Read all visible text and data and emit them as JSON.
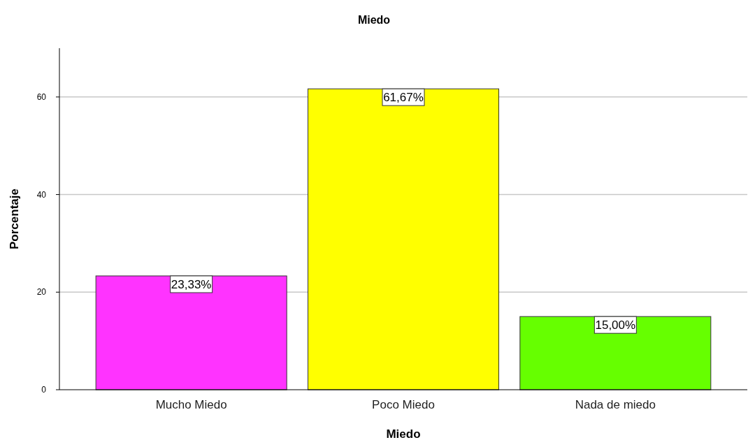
{
  "chart_data": {
    "type": "bar",
    "title": "Miedo",
    "xlabel": "Miedo",
    "ylabel": "Porcentaje",
    "categories": [
      "Mucho Miedo",
      "Poco Miedo",
      "Nada de miedo"
    ],
    "values": [
      23.33,
      61.67,
      15.0
    ],
    "colors": [
      "#ff33ff",
      "#ffff00",
      "#66ff00"
    ],
    "value_labels": [
      "23,33%",
      "61,67%",
      "15,00%"
    ],
    "ylim": [
      0,
      70
    ],
    "yticks": [
      0,
      20,
      40,
      60
    ],
    "grid": "y"
  }
}
